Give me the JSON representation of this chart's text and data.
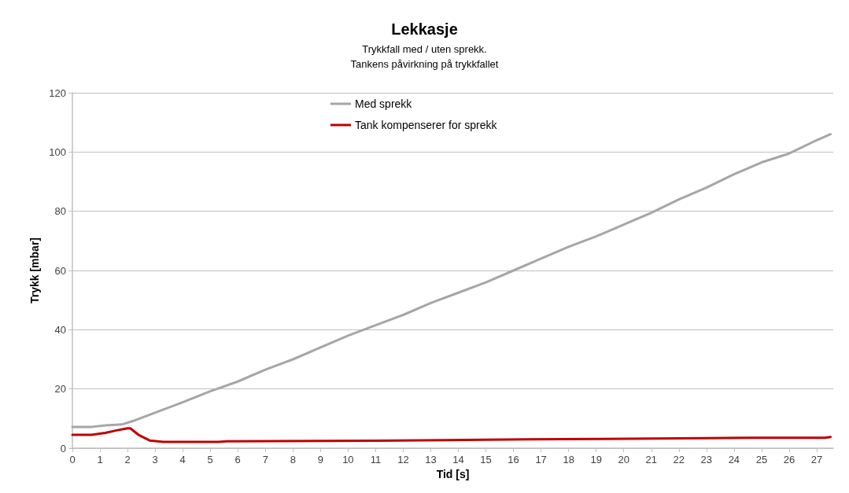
{
  "chart_data": {
    "type": "line",
    "title": "Lekkasje",
    "subtitle": "Trykkfall med / uten sprekk.\nTankens påvirkning på trykkfallet",
    "xlabel": "Tid [s]",
    "ylabel": "Trykk [mbar]",
    "xlim": [
      0,
      27.6
    ],
    "xticks": [
      0,
      1,
      2,
      3,
      4,
      5,
      6,
      7,
      8,
      9,
      10,
      11,
      12,
      13,
      14,
      15,
      16,
      17,
      18,
      19,
      20,
      21,
      22,
      23,
      24,
      25,
      26,
      27
    ],
    "ylim": [
      0,
      120
    ],
    "yticks": [
      0,
      20,
      40,
      60,
      80,
      100,
      120
    ],
    "grid": "y",
    "legend": "top",
    "marker": "none",
    "line_style": "solid",
    "series": [
      {
        "name": "Med sprekk",
        "color": "#a6a6a6",
        "x": [
          0,
          0.7,
          1.2,
          1.8,
          2.3,
          3,
          4,
          5,
          6,
          7,
          8,
          9,
          10,
          11,
          12,
          13,
          14,
          15,
          16,
          17,
          18,
          19,
          20,
          21,
          22,
          23,
          24,
          25,
          26,
          27,
          27.5
        ],
        "values": [
          7.2,
          7.2,
          7.7,
          8,
          9.5,
          12,
          15.5,
          19.2,
          22.5,
          26.5,
          30,
          34,
          38,
          41.5,
          45,
          49,
          52.5,
          56,
          60,
          64,
          68,
          71.5,
          75.5,
          79.5,
          84,
          88,
          92.5,
          96.5,
          99.5,
          104,
          106
        ]
      },
      {
        "name": "Tank kompenserer for sprekk",
        "color": "#c00000",
        "x": [
          0,
          0.7,
          1.2,
          1.6,
          2,
          2.1,
          2.4,
          2.8,
          3.3,
          5.3,
          5.6,
          11,
          13.5,
          16.5,
          19,
          22,
          24.6,
          27.3,
          27.5
        ],
        "values": [
          4.5,
          4.5,
          5.2,
          6,
          6.7,
          6.7,
          4.5,
          2.6,
          2.1,
          2.1,
          2.3,
          2.5,
          2.7,
          3,
          3.1,
          3.3,
          3.5,
          3.5,
          3.8
        ]
      }
    ]
  }
}
